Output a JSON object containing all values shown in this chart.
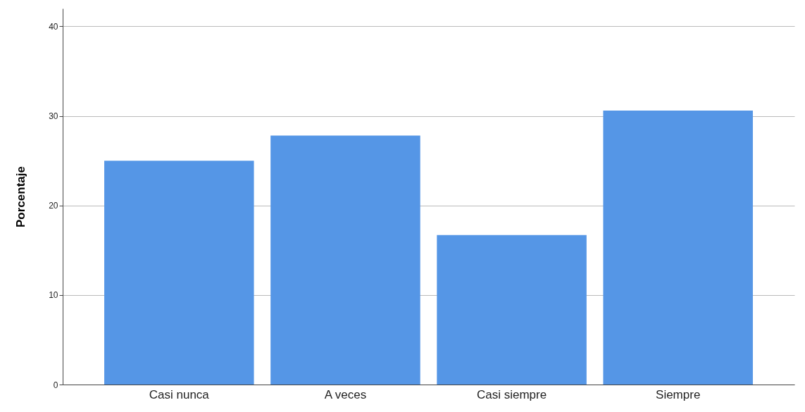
{
  "chart_data": {
    "type": "bar",
    "ylabel": "Porcentaje",
    "categories": [
      "Casi nunca",
      "A veces",
      "Casi siempre",
      "Siempre"
    ],
    "values": [
      25,
      27.8,
      16.7,
      30.6
    ],
    "color": "#5596e6",
    "ylim": [
      0,
      42
    ],
    "yticks": [
      0,
      10,
      20,
      30,
      40
    ],
    "grid": "y"
  }
}
